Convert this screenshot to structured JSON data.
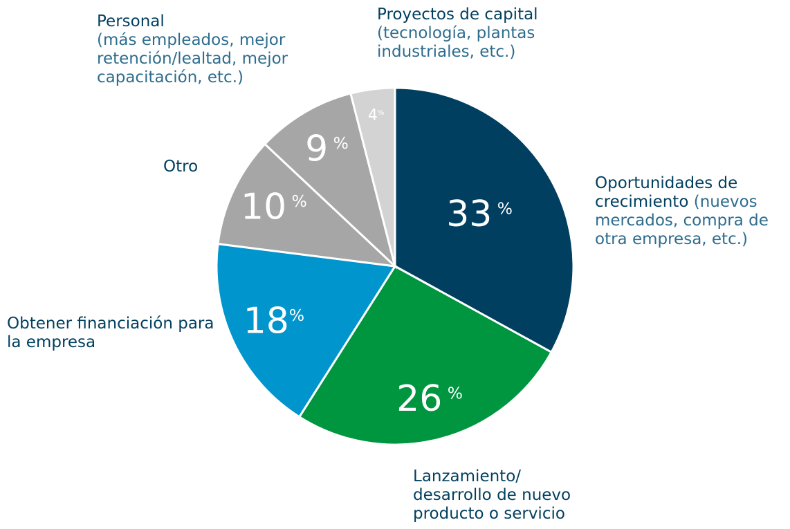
{
  "chart_data": {
    "type": "pie",
    "categories": [
      "Oportunidades de crecimiento",
      "Lanzamiento/ desarrollo de nuevo producto o servicio",
      "Obtener financiación para la empresa",
      "Otro",
      "Personal",
      "Proyectos de capital"
    ],
    "category_details": [
      "(nuevos mercados, compra de otra empresa, etc.)",
      null,
      null,
      null,
      "(más empleados, mejor retención/lealtad, mejor capacitación, etc.)",
      "(tecnología, plantas industriales, etc.)"
    ],
    "values": [
      33,
      26,
      18,
      10,
      9,
      4
    ],
    "value_labels": [
      "33 %",
      "26 %",
      "18%",
      "10 %",
      "9 %",
      "4%"
    ],
    "colors": [
      "#003f5f",
      "#00953f",
      "#0095cc",
      "#a6a6a6",
      "#a6a6a6",
      "#d3d3d3"
    ]
  }
}
